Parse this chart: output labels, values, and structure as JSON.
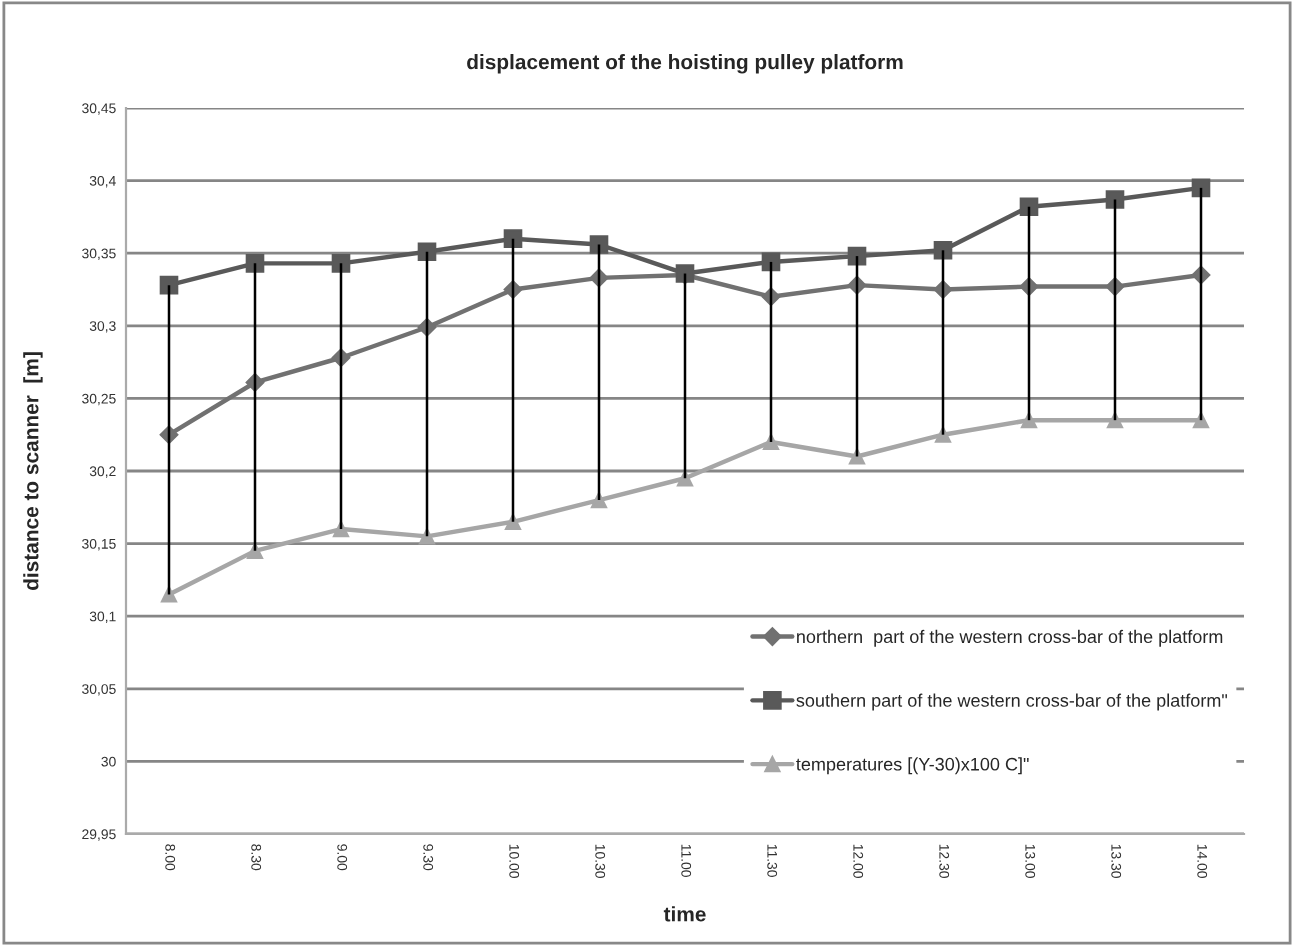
{
  "chart_data": {
    "type": "line",
    "title": "displacement of the hoisting pulley platform",
    "xlabel": "time",
    "ylabel": "distance to scanner  [m]",
    "categories": [
      "8.00",
      "8.30",
      "9.00",
      "9.30",
      "10.00",
      "10.30",
      "11.00",
      "11.30",
      "12.00",
      "12.30",
      "13.00",
      "13.30",
      "14.00"
    ],
    "series": [
      {
        "name": "northern  part of the western cross-bar of the platform",
        "color": "#717171",
        "marker": "diamond",
        "values": [
          30.225,
          30.261,
          30.278,
          30.299,
          30.325,
          30.333,
          30.335,
          30.32,
          30.328,
          30.325,
          30.327,
          30.327,
          30.335
        ]
      },
      {
        "name": "southern part of the western cross-bar of the platform\"",
        "color": "#595959",
        "marker": "square",
        "values": [
          30.328,
          30.343,
          30.343,
          30.351,
          30.36,
          30.356,
          30.336,
          30.344,
          30.348,
          30.352,
          30.382,
          30.387,
          30.395
        ],
        "errors": [
          [
            30.115,
            30.328
          ],
          [
            30.145,
            30.343
          ],
          [
            30.16,
            30.343
          ],
          [
            30.155,
            30.351
          ],
          [
            30.165,
            30.36
          ],
          [
            30.18,
            30.356
          ],
          [
            30.195,
            30.336
          ],
          [
            30.22,
            30.344
          ],
          [
            30.21,
            30.348
          ],
          [
            30.225,
            30.352
          ],
          [
            30.235,
            30.382
          ],
          [
            30.235,
            30.387
          ],
          [
            30.235,
            30.395
          ]
        ]
      },
      {
        "name": "temperatures [(Y-30)x100 C]\"",
        "color": "#a6a6a6",
        "marker": "triangle",
        "values": [
          30.115,
          30.145,
          30.16,
          30.155,
          30.165,
          30.18,
          30.195,
          30.22,
          30.21,
          30.225,
          30.235,
          30.235,
          30.235
        ]
      }
    ],
    "ylim": [
      29.95,
      30.45
    ],
    "yticks": [
      {
        "value": 29.95,
        "label": "29,95"
      },
      {
        "value": 30,
        "label": "30"
      },
      {
        "value": 30.05,
        "label": "30,05"
      },
      {
        "value": 30.1,
        "label": "30,1"
      },
      {
        "value": 30.15,
        "label": "30,15"
      },
      {
        "value": 30.2,
        "label": "30,2"
      },
      {
        "value": 30.25,
        "label": "30,25"
      },
      {
        "value": 30.3,
        "label": "30,3"
      },
      {
        "value": 30.35,
        "label": "30,35"
      },
      {
        "value": 30.4,
        "label": "30,4"
      },
      {
        "value": 30.45,
        "label": "30,45"
      }
    ],
    "grid": "y",
    "legend": "bottom right",
    "line_style": "solid"
  }
}
